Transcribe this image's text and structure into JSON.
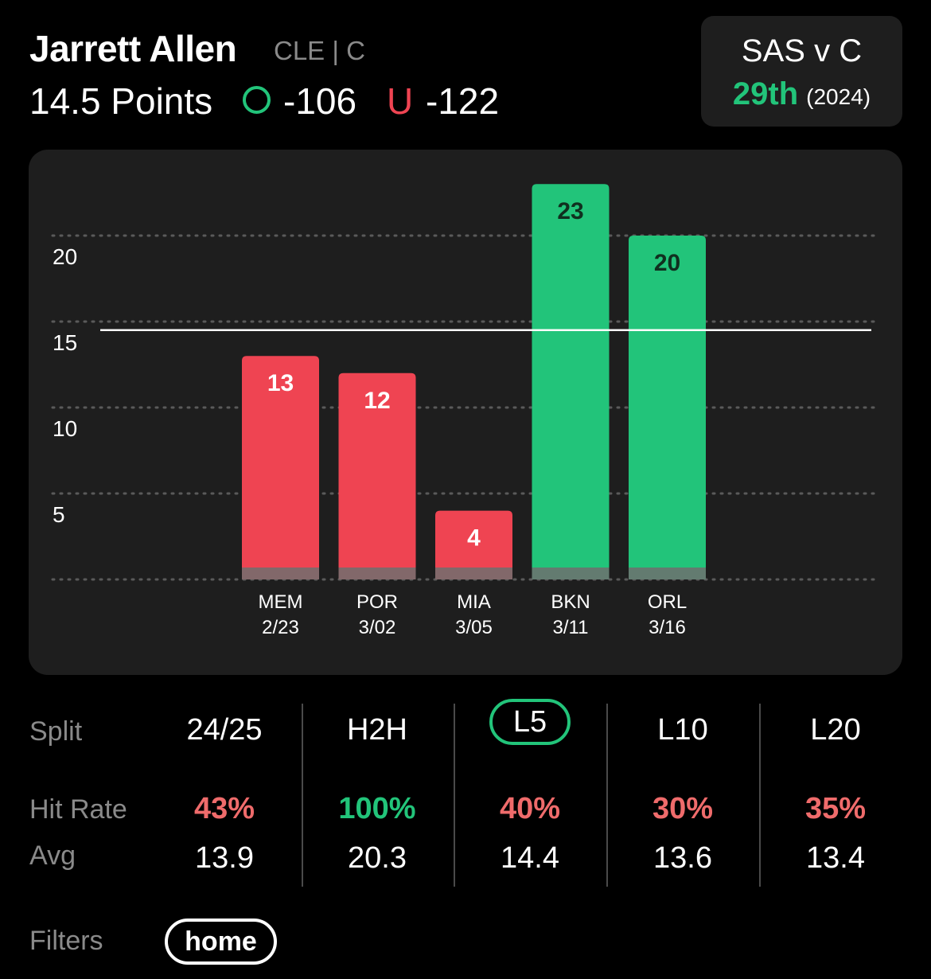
{
  "header": {
    "player_name": "Jarrett Allen",
    "team_position": "CLE | C",
    "line_label": "14.5 Points",
    "over_odds": "-106",
    "under_letter": "U",
    "under_odds": "-122",
    "over_icon": "circle-o-icon"
  },
  "matchup": {
    "title": "SAS v C",
    "rank": "29th",
    "year": "(2024)"
  },
  "colors": {
    "over": "#22c47a",
    "under": "#ef4452",
    "panel": "#1e1e1e",
    "line": "#ffffff"
  },
  "chart_data": {
    "type": "bar",
    "categories": [
      "MEM",
      "POR",
      "MIA",
      "BKN",
      "ORL"
    ],
    "dates": [
      "2/23",
      "3/02",
      "3/05",
      "3/11",
      "3/16"
    ],
    "values": [
      13,
      12,
      4,
      23,
      20
    ],
    "threshold": 14.5,
    "yticks": [
      "5",
      "10",
      "15",
      "20"
    ],
    "ylim": [
      0,
      25
    ],
    "grid": true,
    "bar_colors": [
      "#ef4452",
      "#ef4452",
      "#ef4452",
      "#22c47a",
      "#22c47a"
    ]
  },
  "stats": {
    "split_label": "Split",
    "hit_label": "Hit Rate",
    "avg_label": "Avg",
    "columns": [
      {
        "split": "24/25",
        "hit": "43%",
        "hit_color": "#ef6b6b",
        "avg": "13.9"
      },
      {
        "split": "H2H",
        "hit": "100%",
        "hit_color": "#22c47a",
        "avg": "20.3"
      },
      {
        "split": "L5",
        "hit": "40%",
        "hit_color": "#ef6b6b",
        "avg": "14.4"
      },
      {
        "split": "L10",
        "hit": "30%",
        "hit_color": "#ef6b6b",
        "avg": "13.6"
      },
      {
        "split": "L20",
        "hit": "35%",
        "hit_color": "#ef6b6b",
        "avg": "13.4"
      }
    ]
  },
  "filters": {
    "label": "Filters",
    "items": [
      "home"
    ]
  }
}
